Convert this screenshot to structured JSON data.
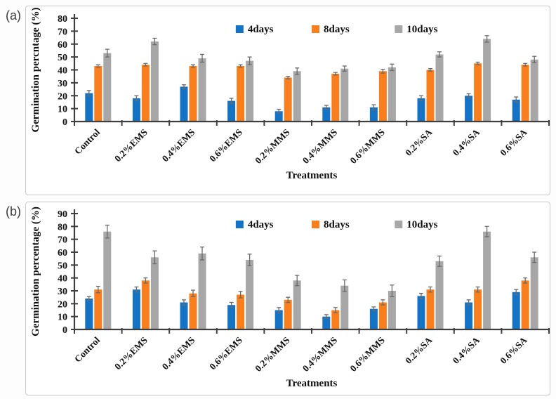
{
  "page": {
    "background": "#fdfdfd"
  },
  "colors": {
    "axis": "#3f3f3f",
    "error_bar": "#6a6a6a",
    "panel_border": "#c9c9c9",
    "text": "#101010",
    "series_blue": "#1473c4",
    "series_orange": "#f87e1e",
    "series_gray": "#a7a7a7"
  },
  "panels": [
    {
      "tag": "(a)"
    },
    {
      "tag": "(b)"
    }
  ],
  "chart_data": [
    {
      "type": "bar",
      "title": "",
      "xlabel": "Treatments",
      "ylabel": "Germination percntage (%)",
      "ylim": [
        0,
        80
      ],
      "ytick_step": 10,
      "grid": false,
      "legend_position": "top-inside",
      "categories": [
        "Control",
        "0.2%EMS",
        "0.4%EMS",
        "0.6%EMS",
        "0.2%MMS",
        "0.4%MMS",
        "0.6%MMS",
        "0.2%SA",
        "0.4%SA",
        "0.6%SA"
      ],
      "series": [
        {
          "name": "4days",
          "color": "#1473c4",
          "values": [
            22,
            18,
            27,
            16,
            8,
            11,
            11,
            18,
            20,
            17
          ],
          "errors": [
            2,
            2,
            1.5,
            2,
            1.5,
            1.5,
            2,
            2,
            1.5,
            2
          ]
        },
        {
          "name": "8days",
          "color": "#f87e1e",
          "values": [
            43,
            44,
            43,
            43,
            34,
            37,
            39,
            40,
            45,
            44
          ],
          "errors": [
            1,
            1,
            1,
            1,
            1,
            1,
            1.5,
            1,
            1,
            1
          ]
        },
        {
          "name": "10days",
          "color": "#a7a7a7",
          "values": [
            53,
            62,
            49,
            47,
            39,
            41,
            42,
            52,
            64,
            48
          ],
          "errors": [
            3,
            2.5,
            3,
            3,
            2.5,
            2,
            2.5,
            2,
            2.5,
            2.5
          ]
        }
      ]
    },
    {
      "type": "bar",
      "title": "",
      "xlabel": "Treatments",
      "ylabel": "Germination percentage (%)",
      "ylim": [
        0,
        90
      ],
      "ytick_step": 10,
      "grid": false,
      "legend_position": "top-inside",
      "categories": [
        "Control",
        "0.2%EMS",
        "0.4%EMS",
        "0.6%EMS",
        "0.2%MMS",
        "0.4%MMS",
        "0.6%MMS",
        "0.2%SA",
        "0.4%SA",
        "0.6%SA"
      ],
      "series": [
        {
          "name": "4days",
          "color": "#1473c4",
          "values": [
            24,
            31,
            21,
            19,
            15,
            10,
            16,
            26,
            21,
            29
          ],
          "errors": [
            1.5,
            2,
            2,
            2,
            2,
            1.5,
            1.5,
            2,
            2,
            2
          ]
        },
        {
          "name": "8days",
          "color": "#f87e1e",
          "values": [
            31,
            38,
            28,
            27,
            23,
            15,
            21,
            31,
            31,
            38
          ],
          "errors": [
            2.5,
            2,
            2.5,
            2.5,
            2,
            2,
            2,
            2,
            2,
            2
          ]
        },
        {
          "name": "10days",
          "color": "#a7a7a7",
          "values": [
            76,
            56,
            59,
            54,
            38,
            34,
            30,
            53,
            76,
            56
          ],
          "errors": [
            5,
            5,
            5,
            4.5,
            4,
            4.5,
            4.5,
            4,
            4,
            4
          ]
        }
      ]
    }
  ]
}
